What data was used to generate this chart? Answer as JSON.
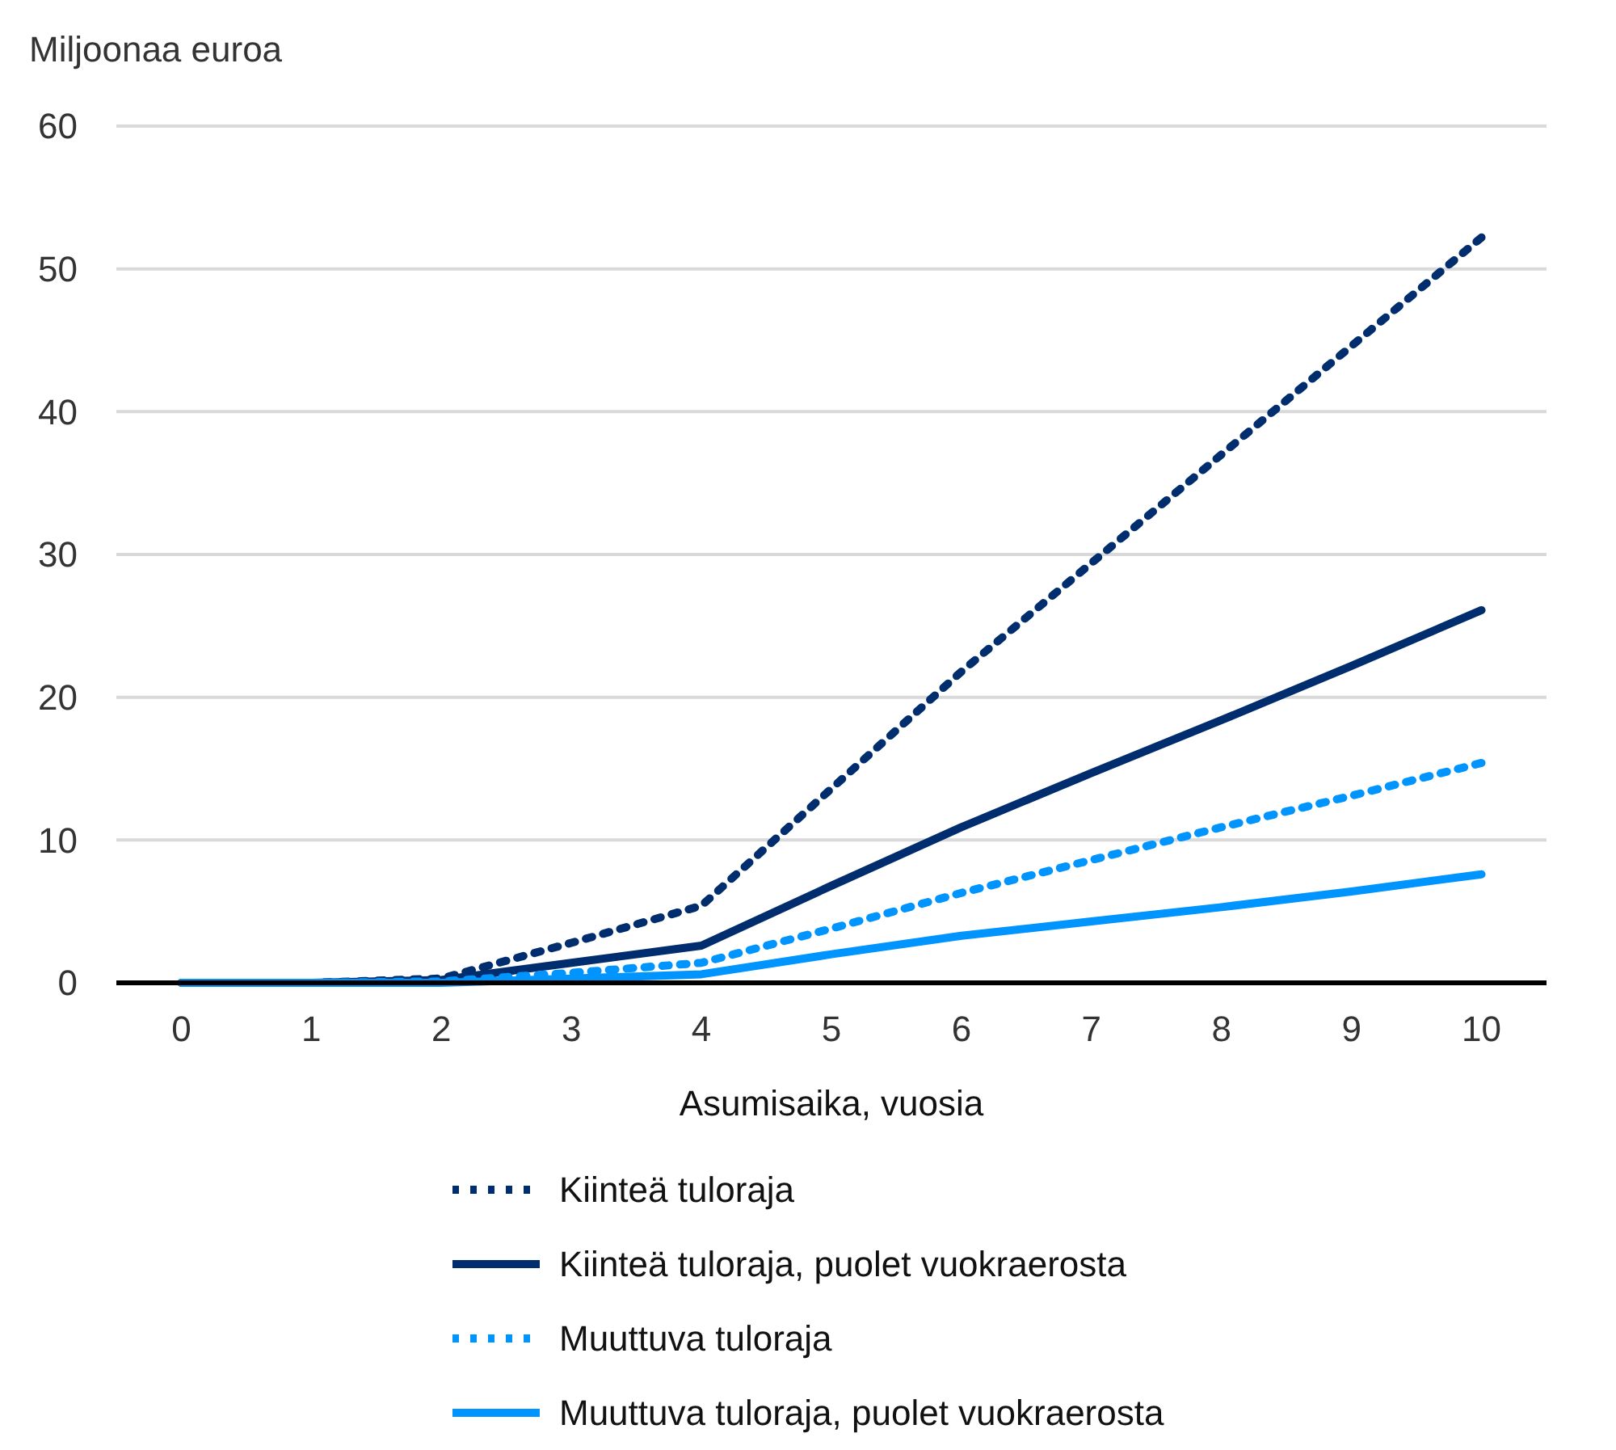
{
  "chart_data": {
    "type": "line",
    "ylabel": "Miljoonaa euroa",
    "xlabel": "Asumisaika, vuosia",
    "x": [
      0,
      1,
      2,
      3,
      4,
      5,
      6,
      7,
      8,
      9,
      10
    ],
    "xlim": [
      -0.5,
      10.5
    ],
    "xticks": [
      0,
      1,
      2,
      3,
      4,
      5,
      6,
      7,
      8,
      9,
      10
    ],
    "ylim": [
      0,
      60
    ],
    "yticks": [
      0,
      10,
      20,
      30,
      40,
      50,
      60
    ],
    "grid": "y",
    "legend": "bottom",
    "series": [
      {
        "name": "Kiinteä tuloraja",
        "color": "#002d6e",
        "line_style": "dotted",
        "values": [
          0,
          0,
          0.3,
          2.8,
          5.4,
          13.6,
          21.8,
          29.4,
          37.0,
          44.6,
          52.2
        ]
      },
      {
        "name": "Kiinteä tuloraja, puolet vuokraerosta",
        "color": "#002d6e",
        "line_style": "solid",
        "values": [
          0,
          0,
          0.2,
          1.4,
          2.6,
          6.8,
          10.9,
          14.7,
          18.4,
          22.2,
          26.1
        ]
      },
      {
        "name": "Muuttuva tuloraja",
        "color": "#0094ff",
        "line_style": "dotted",
        "values": [
          0,
          0,
          0.1,
          0.7,
          1.4,
          3.8,
          6.3,
          8.6,
          10.9,
          13.1,
          15.4
        ]
      },
      {
        "name": "Muuttuva tuloraja, puolet vuokraerosta",
        "color": "#0094ff",
        "line_style": "solid",
        "values": [
          0,
          0,
          0,
          0.3,
          0.6,
          2.0,
          3.3,
          4.3,
          5.3,
          6.4,
          7.6
        ]
      }
    ]
  }
}
